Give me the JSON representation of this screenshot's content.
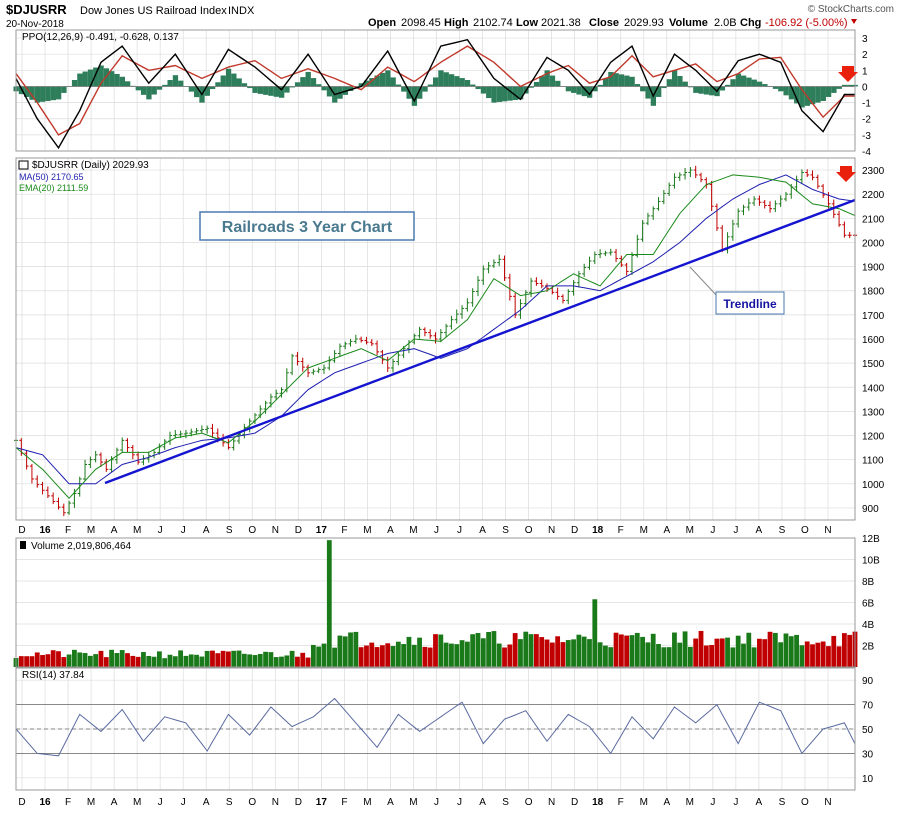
{
  "header": {
    "symbol": "$DJUSRR",
    "name": "Dow Jones US Railroad Index",
    "exchange": "INDX",
    "date": "20-Nov-2018",
    "brand": "© StockCharts.com",
    "open_label": "Open",
    "open": "2098.45",
    "high_label": "High",
    "high": "2102.74",
    "low_label": "Low",
    "low": "2021.38",
    "close_label": "Close",
    "close": "2029.93",
    "volume_label": "Volume",
    "volume": "2.0B",
    "chg_label": "Chg",
    "chg": "-106.92 (-5.00%)"
  },
  "colors": {
    "up": "#1a7a1a",
    "down": "#c00000",
    "ppo": "#000000",
    "signal": "#c0392b",
    "histogram": "#2e7d5b",
    "ma50": "#1f1fb0",
    "ema20": "#1a8a1a",
    "trendline": "#1414d0",
    "annotation_box": "#4a7ab0",
    "arrow": "#e8200c",
    "rsi": "#5a6aa0",
    "grid": "#dcdcdc"
  },
  "annotations": {
    "title_box": "Railroads 3 Year Chart",
    "trendline_label": "Trendline"
  },
  "chart_data": [
    {
      "type": "line",
      "panel": "ppo",
      "legend": "PPO(12,26,9) -0.491, -0.628, 0.137",
      "values": {
        "ppo": -0.491,
        "signal": -0.628,
        "histogram": 0.137
      },
      "ylim": [
        -4,
        3.5
      ],
      "yticks": [
        3,
        2,
        1,
        0,
        -1,
        -2,
        -3,
        -4
      ],
      "series": [
        {
          "name": "PPO(12,26,9)",
          "x": [
            0,
            4,
            8,
            12,
            16,
            20,
            25,
            30,
            35,
            40,
            45,
            50,
            55,
            60,
            65,
            70,
            75,
            80,
            85,
            90,
            95,
            100,
            104,
            108,
            112,
            116,
            120,
            124,
            128,
            132,
            136,
            140,
            144,
            148,
            152,
            156
          ],
          "values": [
            0.5,
            -2.0,
            -3.8,
            -1.5,
            1.5,
            2.5,
            0.2,
            2.0,
            -0.5,
            2.3,
            1.2,
            -0.2,
            2.0,
            -0.5,
            0.0,
            2.2,
            -0.9,
            2.5,
            2.9,
            0.5,
            -0.8,
            1.8,
            1.0,
            -0.5,
            1.5,
            2.5,
            -0.6,
            2.0,
            1.0,
            -0.3,
            1.6,
            2.0,
            1.5,
            -1.5,
            -2.8,
            -0.5
          ]
        },
        {
          "name": "Signal",
          "x": [
            0,
            4,
            8,
            12,
            16,
            20,
            25,
            30,
            35,
            40,
            45,
            50,
            55,
            60,
            65,
            70,
            75,
            80,
            85,
            90,
            95,
            100,
            104,
            108,
            112,
            116,
            120,
            124,
            128,
            132,
            136,
            140,
            144,
            148,
            152,
            156
          ],
          "values": [
            0.8,
            -1.0,
            -3.0,
            -2.3,
            0.2,
            1.9,
            1.0,
            1.3,
            0.5,
            1.2,
            1.6,
            0.5,
            1.1,
            0.5,
            -0.2,
            1.2,
            0.3,
            1.5,
            2.5,
            1.5,
            0.0,
            0.8,
            1.3,
            0.2,
            0.6,
            1.9,
            0.6,
            1.0,
            1.4,
            0.3,
            0.8,
            1.7,
            1.8,
            -0.2,
            -1.9,
            -0.6
          ]
        }
      ]
    },
    {
      "type": "line",
      "panel": "price",
      "legend": [
        "$DJUSRR (Daily) 2029.93",
        "MA(50) 2170.65",
        "EMA(20) 2111.59"
      ],
      "ylim": [
        850,
        2350
      ],
      "yticks": [
        2300,
        2200,
        2100,
        2000,
        1900,
        1800,
        1700,
        1600,
        1500,
        1400,
        1300,
        1200,
        1100,
        1000,
        900
      ],
      "series": [
        {
          "name": "$DJUSRR",
          "x": [
            0,
            3,
            6,
            9,
            11,
            13,
            15,
            17,
            20,
            23,
            26,
            29,
            32,
            36,
            40,
            44,
            48,
            50,
            52,
            55,
            58,
            61,
            64,
            67,
            70,
            73,
            76,
            79,
            82,
            85,
            88,
            91,
            94,
            97,
            100,
            103,
            106,
            109,
            112,
            115,
            118,
            121,
            124,
            127,
            130,
            133,
            136,
            139,
            142,
            145,
            148,
            150,
            153,
            156,
            158
          ],
          "values": [
            1180,
            1020,
            950,
            880,
            960,
            1080,
            1120,
            1060,
            1180,
            1090,
            1130,
            1200,
            1210,
            1230,
            1150,
            1260,
            1360,
            1390,
            1530,
            1460,
            1480,
            1570,
            1600,
            1580,
            1480,
            1560,
            1640,
            1600,
            1680,
            1750,
            1890,
            1930,
            1700,
            1840,
            1810,
            1760,
            1870,
            1950,
            1960,
            1880,
            2080,
            2170,
            2270,
            2300,
            2240,
            1970,
            2130,
            2180,
            2140,
            2200,
            2290,
            2270,
            2160,
            2030,
            2029.93
          ]
        },
        {
          "name": "MA(50)",
          "x": [
            0,
            5,
            10,
            15,
            20,
            25,
            30,
            35,
            40,
            45,
            50,
            55,
            60,
            65,
            70,
            75,
            80,
            85,
            90,
            95,
            100,
            105,
            110,
            115,
            120,
            125,
            130,
            135,
            140,
            145,
            150,
            155,
            158
          ],
          "values": [
            1150,
            1120,
            1000,
            1000,
            1080,
            1110,
            1150,
            1180,
            1190,
            1210,
            1280,
            1390,
            1460,
            1500,
            1540,
            1560,
            1520,
            1560,
            1640,
            1720,
            1820,
            1820,
            1800,
            1860,
            1920,
            2000,
            2100,
            2180,
            2240,
            2280,
            2220,
            2180,
            2170.65
          ]
        },
        {
          "name": "EMA(20)",
          "x": [
            0,
            5,
            10,
            15,
            20,
            25,
            30,
            35,
            40,
            45,
            50,
            55,
            60,
            65,
            70,
            75,
            80,
            85,
            90,
            95,
            100,
            105,
            110,
            115,
            120,
            125,
            130,
            135,
            140,
            145,
            150,
            155,
            158
          ],
          "values": [
            1150,
            1060,
            940,
            1060,
            1130,
            1130,
            1190,
            1210,
            1170,
            1260,
            1370,
            1480,
            1520,
            1560,
            1510,
            1600,
            1590,
            1680,
            1850,
            1780,
            1800,
            1870,
            1820,
            1950,
            1950,
            2120,
            2240,
            2280,
            2270,
            2250,
            2160,
            2140,
            2111.59
          ]
        }
      ]
    },
    {
      "type": "bar",
      "panel": "volume",
      "legend": "Volume 2,019,806,464",
      "ylim": [
        0,
        12000000000
      ],
      "yticks": [
        12000000000,
        10000000000,
        8000000000,
        6000000000,
        4000000000,
        2000000000
      ],
      "ytick_labels": [
        "12B",
        "10B",
        "8B",
        "6B",
        "4B",
        "2B"
      ],
      "spikes": [
        {
          "x": 59,
          "value": 11800000000
        },
        {
          "x": 109,
          "value": 6300000000
        }
      ]
    },
    {
      "type": "line",
      "panel": "rsi",
      "legend": "RSI(14) 37.84",
      "ylim": [
        0,
        100
      ],
      "yticks": [
        90,
        70,
        50,
        30,
        10
      ],
      "reference_lines": [
        70,
        50,
        30
      ],
      "series": [
        {
          "name": "RSI(14)",
          "x": [
            0,
            4,
            8,
            12,
            16,
            20,
            24,
            28,
            32,
            36,
            40,
            44,
            48,
            52,
            56,
            60,
            64,
            68,
            72,
            76,
            80,
            84,
            88,
            92,
            96,
            100,
            104,
            108,
            112,
            116,
            120,
            124,
            128,
            132,
            136,
            140,
            144,
            148,
            152,
            156,
            158
          ],
          "values": [
            50,
            30,
            28,
            62,
            48,
            66,
            40,
            60,
            55,
            32,
            62,
            45,
            68,
            52,
            60,
            75,
            55,
            35,
            62,
            48,
            60,
            72,
            38,
            58,
            65,
            40,
            62,
            52,
            30,
            60,
            42,
            68,
            55,
            70,
            38,
            72,
            65,
            30,
            50,
            55,
            37.84
          ]
        }
      ]
    }
  ],
  "x_axis": {
    "labels": [
      {
        "text": "D",
        "bold": false
      },
      {
        "text": "16",
        "bold": true
      },
      {
        "text": "F",
        "bold": false
      },
      {
        "text": "M",
        "bold": false
      },
      {
        "text": "A",
        "bold": false
      },
      {
        "text": "M",
        "bold": false
      },
      {
        "text": "J",
        "bold": false
      },
      {
        "text": "J",
        "bold": false
      },
      {
        "text": "A",
        "bold": false
      },
      {
        "text": "S",
        "bold": false
      },
      {
        "text": "O",
        "bold": false
      },
      {
        "text": "N",
        "bold": false
      },
      {
        "text": "D",
        "bold": false
      },
      {
        "text": "17",
        "bold": true
      },
      {
        "text": "F",
        "bold": false
      },
      {
        "text": "M",
        "bold": false
      },
      {
        "text": "A",
        "bold": false
      },
      {
        "text": "M",
        "bold": false
      },
      {
        "text": "J",
        "bold": false
      },
      {
        "text": "J",
        "bold": false
      },
      {
        "text": "A",
        "bold": false
      },
      {
        "text": "S",
        "bold": false
      },
      {
        "text": "O",
        "bold": false
      },
      {
        "text": "N",
        "bold": false
      },
      {
        "text": "D",
        "bold": false
      },
      {
        "text": "18",
        "bold": true
      },
      {
        "text": "F",
        "bold": false
      },
      {
        "text": "M",
        "bold": false
      },
      {
        "text": "A",
        "bold": false
      },
      {
        "text": "M",
        "bold": false
      },
      {
        "text": "J",
        "bold": false
      },
      {
        "text": "J",
        "bold": false
      },
      {
        "text": "A",
        "bold": false
      },
      {
        "text": "S",
        "bold": false
      },
      {
        "text": "O",
        "bold": false
      },
      {
        "text": "N",
        "bold": false
      }
    ]
  }
}
